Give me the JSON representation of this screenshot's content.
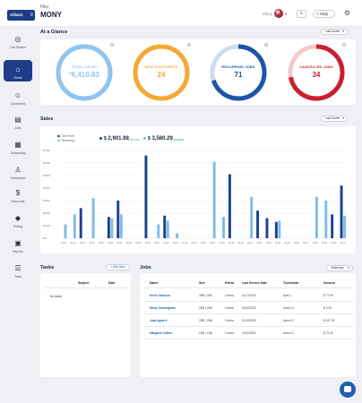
{
  "header": {
    "logo_text": "Allianz",
    "greeting": "Hey,",
    "user_name": "MONY",
    "topbar_user": "Mony",
    "help_label": "Help"
  },
  "sidebar": {
    "items": [
      {
        "label": "Get Started",
        "icon": "compass-icon",
        "glyph": "◎"
      },
      {
        "label": "Home",
        "icon": "home-icon",
        "glyph": "⌂",
        "active": true
      },
      {
        "label": "Customers",
        "icon": "users-icon",
        "glyph": "☺"
      },
      {
        "label": "Jobs",
        "icon": "clipboard-icon",
        "glyph": "▤"
      },
      {
        "label": "Scheduling",
        "icon": "calendar-icon",
        "glyph": "▦"
      },
      {
        "label": "Technicians",
        "icon": "technician-icon",
        "glyph": "♙"
      },
      {
        "label": "Discounts",
        "icon": "dollar-icon",
        "glyph": "$"
      },
      {
        "label": "Pricing",
        "icon": "tag-icon",
        "glyph": "◆"
      },
      {
        "label": "Reports",
        "icon": "report-icon",
        "glyph": "▣"
      },
      {
        "label": "Tools",
        "icon": "tools-icon",
        "glyph": "☰"
      }
    ]
  },
  "glance": {
    "title": "At a Glance",
    "period": "Last Month",
    "gauges": [
      {
        "label": "TOTAL SALES",
        "value": "6,410.83",
        "currency": "$",
        "color": "#8fc4ef",
        "track": "#d9ecfa",
        "fraction": 1.0
      },
      {
        "label": "NEW CUSTOMERS",
        "value": "24",
        "currency": "",
        "color": "#f5a935",
        "track": "#fde4bf",
        "fraction": 1.0
      },
      {
        "label": "RECURRING JOBS",
        "value": "71",
        "currency": "",
        "color": "#1d55a8",
        "track": "#cfdcf0",
        "fraction": 0.7
      },
      {
        "label": "CANCELLED JOBS",
        "value": "34",
        "currency": "",
        "color": "#c8202f",
        "track": "#f3c9cd",
        "fraction": 0.72
      }
    ]
  },
  "sales": {
    "title": "Sales",
    "period": "Last Month",
    "legend": [
      {
        "name": "One Time",
        "color": "#1d3f8f"
      },
      {
        "name": "Recurring",
        "color": "#7dbce8"
      }
    ],
    "one_time_total": "2,901.98",
    "one_time_delta": "+ 60.47%",
    "recurring_total": "3,580.29",
    "recurring_delta": "+ 184.88%",
    "currency": "$"
  },
  "chart_data": {
    "type": "bar",
    "yticks": [
      "$ 700",
      "$ 600",
      "$ 500",
      "$ 400",
      "$ 300",
      "$ 200",
      "$ 100",
      "$ 0"
    ],
    "ylim": [
      0,
      700
    ],
    "categories": [
      "03-01",
      "03-02",
      "03-03",
      "03-04",
      "03-05",
      "03-06",
      "03-07",
      "03-08",
      "03-09",
      "03-10",
      "03-11",
      "03-12",
      "03-13",
      "03-14",
      "03-15",
      "03-16",
      "03-17",
      "03-18",
      "03-19",
      "03-20",
      "03-21",
      "03-22",
      "03-23",
      "03-24",
      "03-25",
      "03-26",
      "03-27",
      "03-28",
      "03-29",
      "03-30",
      "03-31"
    ],
    "series": [
      {
        "name": "One Time",
        "color": "#1d3f8f",
        "values": [
          0,
          0,
          240,
          0,
          0,
          170,
          300,
          0,
          0,
          660,
          0,
          180,
          0,
          0,
          0,
          0,
          0,
          0,
          510,
          0,
          0,
          220,
          160,
          130,
          0,
          0,
          0,
          0,
          0,
          190,
          420
        ]
      },
      {
        "name": "Recurring",
        "color": "#7dbce8",
        "values": [
          110,
          190,
          0,
          320,
          0,
          160,
          190,
          0,
          0,
          0,
          110,
          140,
          40,
          0,
          0,
          0,
          610,
          170,
          0,
          0,
          330,
          0,
          0,
          140,
          0,
          0,
          0,
          330,
          300,
          0,
          180
        ]
      }
    ]
  },
  "tasks": {
    "title": "Tasks",
    "add_label": "+ Add New",
    "col_subject": "Subject",
    "col_date": "Date",
    "empty": "No tasks!"
  },
  "jobs": {
    "title": "Jobs",
    "period": "Yesterday",
    "columns": [
      "Name",
      "Size",
      "Extras",
      "Last Service Date",
      "Technician",
      "Amount"
    ],
    "rows": [
      [
        "Kevin Johnson",
        "2BR | 2BA",
        "0 extra",
        "01/17/2022",
        "April J.",
        "$ 77.90"
      ],
      [
        "Mony Cunningham",
        "2BR | 2BA",
        "0 extra",
        "01/30/2022",
        "Aaron G.",
        "$ 2.30"
      ],
      [
        "Juan Aguirre",
        "2BR | 2BA",
        "0 extra",
        "01/19/2022",
        "Aaron G.",
        "$ 137.90"
      ],
      [
        "Margaret Collins",
        "1BR | 1BA",
        "0 extra",
        "12/30/2021",
        "Aaron G.",
        "$ 73.33"
      ]
    ]
  }
}
